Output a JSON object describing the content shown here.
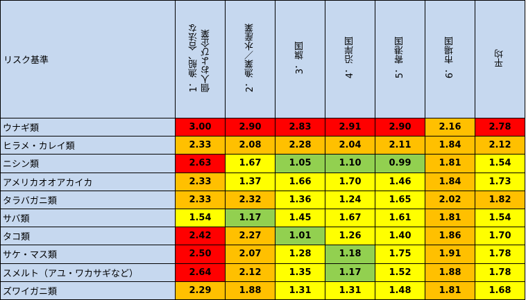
{
  "colors": {
    "header_bg": "#c6d8ef",
    "grid_line": "#000000",
    "scale": {
      "red": "#ff0000",
      "orange": "#ffc000",
      "yellow": "#ffff00",
      "green": "#92d050"
    }
  },
  "chart_data": {
    "type": "heatmap",
    "corner_label": "リスク基準",
    "columns": [
      "1．漁船、合法な\n個人および企業",
      "2．漁業／水産業",
      "3．旗国",
      "4．沿岸国",
      "5．寄港国",
      "6．市場国",
      "平均"
    ],
    "rows": [
      {
        "label": "ウナギ類",
        "values": [
          "3.00",
          "2.90",
          "2.83",
          "2.91",
          "2.90",
          "2.16",
          "2.78"
        ],
        "colors": [
          "red",
          "red",
          "red",
          "red",
          "red",
          "orange",
          "red"
        ]
      },
      {
        "label": "ヒラメ・カレイ類",
        "values": [
          "2.33",
          "2.08",
          "2.28",
          "2.04",
          "2.11",
          "1.84",
          "2.12"
        ],
        "colors": [
          "orange",
          "orange",
          "orange",
          "orange",
          "orange",
          "orange",
          "orange"
        ]
      },
      {
        "label": "ニシン類",
        "values": [
          "2.63",
          "1.67",
          "1.05",
          "1.10",
          "0.99",
          "1.81",
          "1.54"
        ],
        "colors": [
          "red",
          "yellow",
          "green",
          "green",
          "green",
          "orange",
          "yellow"
        ]
      },
      {
        "label": "アメリカオオアカイカ",
        "values": [
          "2.33",
          "1.37",
          "1.66",
          "1.70",
          "1.46",
          "1.84",
          "1.73"
        ],
        "colors": [
          "orange",
          "yellow",
          "yellow",
          "yellow",
          "yellow",
          "orange",
          "yellow"
        ]
      },
      {
        "label": "タラバガニ類",
        "values": [
          "2.33",
          "2.32",
          "1.36",
          "1.24",
          "1.65",
          "2.02",
          "1.82"
        ],
        "colors": [
          "orange",
          "orange",
          "yellow",
          "yellow",
          "yellow",
          "orange",
          "orange"
        ]
      },
      {
        "label": "サバ類",
        "values": [
          "1.54",
          "1.17",
          "1.45",
          "1.67",
          "1.61",
          "1.81",
          "1.54"
        ],
        "colors": [
          "yellow",
          "green",
          "yellow",
          "yellow",
          "yellow",
          "orange",
          "yellow"
        ]
      },
      {
        "label": "タコ類",
        "values": [
          "2.42",
          "2.27",
          "1.01",
          "1.26",
          "1.40",
          "1.86",
          "1.70"
        ],
        "colors": [
          "red",
          "orange",
          "green",
          "yellow",
          "yellow",
          "orange",
          "yellow"
        ]
      },
      {
        "label": "サケ・マス類",
        "values": [
          "2.50",
          "2.07",
          "1.28",
          "1.18",
          "1.75",
          "1.91",
          "1.78"
        ],
        "colors": [
          "red",
          "orange",
          "yellow",
          "green",
          "yellow",
          "orange",
          "yellow"
        ]
      },
      {
        "label": "スメルト（アユ・ワカサギなど）",
        "values": [
          "2.64",
          "2.12",
          "1.35",
          "1.17",
          "1.52",
          "1.88",
          "1.78"
        ],
        "colors": [
          "red",
          "orange",
          "yellow",
          "green",
          "yellow",
          "orange",
          "yellow"
        ]
      },
      {
        "label": "ズワイガニ類",
        "values": [
          "2.29",
          "1.88",
          "1.31",
          "1.31",
          "1.48",
          "1.81",
          "1.68"
        ],
        "colors": [
          "orange",
          "orange",
          "yellow",
          "yellow",
          "yellow",
          "orange",
          "yellow"
        ]
      }
    ]
  }
}
